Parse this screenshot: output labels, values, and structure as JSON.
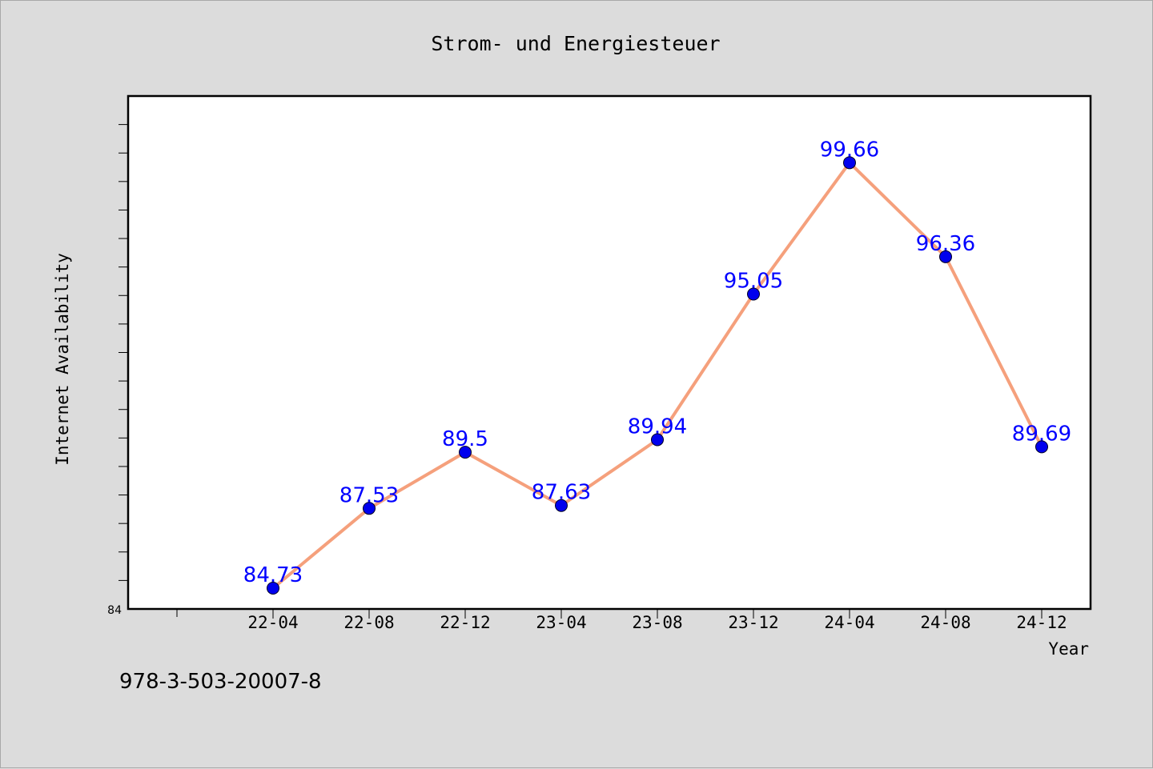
{
  "chart_data": {
    "type": "line",
    "title": "Strom- und Energiesteuer",
    "xlabel": "Year",
    "ylabel": "Internet Availability",
    "categories": [
      "22-04",
      "22-08",
      "22-12",
      "23-04",
      "23-08",
      "23-12",
      "24-04",
      "24-08",
      "24-12"
    ],
    "series": [
      {
        "values": [
          84.73,
          87.53,
          89.5,
          87.63,
          89.94,
          95.05,
          99.66,
          96.36,
          89.69
        ]
      }
    ],
    "ylim": [
      84,
      102
    ],
    "y_tick_labels": [
      "84"
    ],
    "grid": false,
    "line_color": "#f5a07c",
    "marker_color": "#0000ee",
    "label_color": "#0000ff"
  },
  "footer": {
    "isbn": "978-3-503-20007-8"
  }
}
